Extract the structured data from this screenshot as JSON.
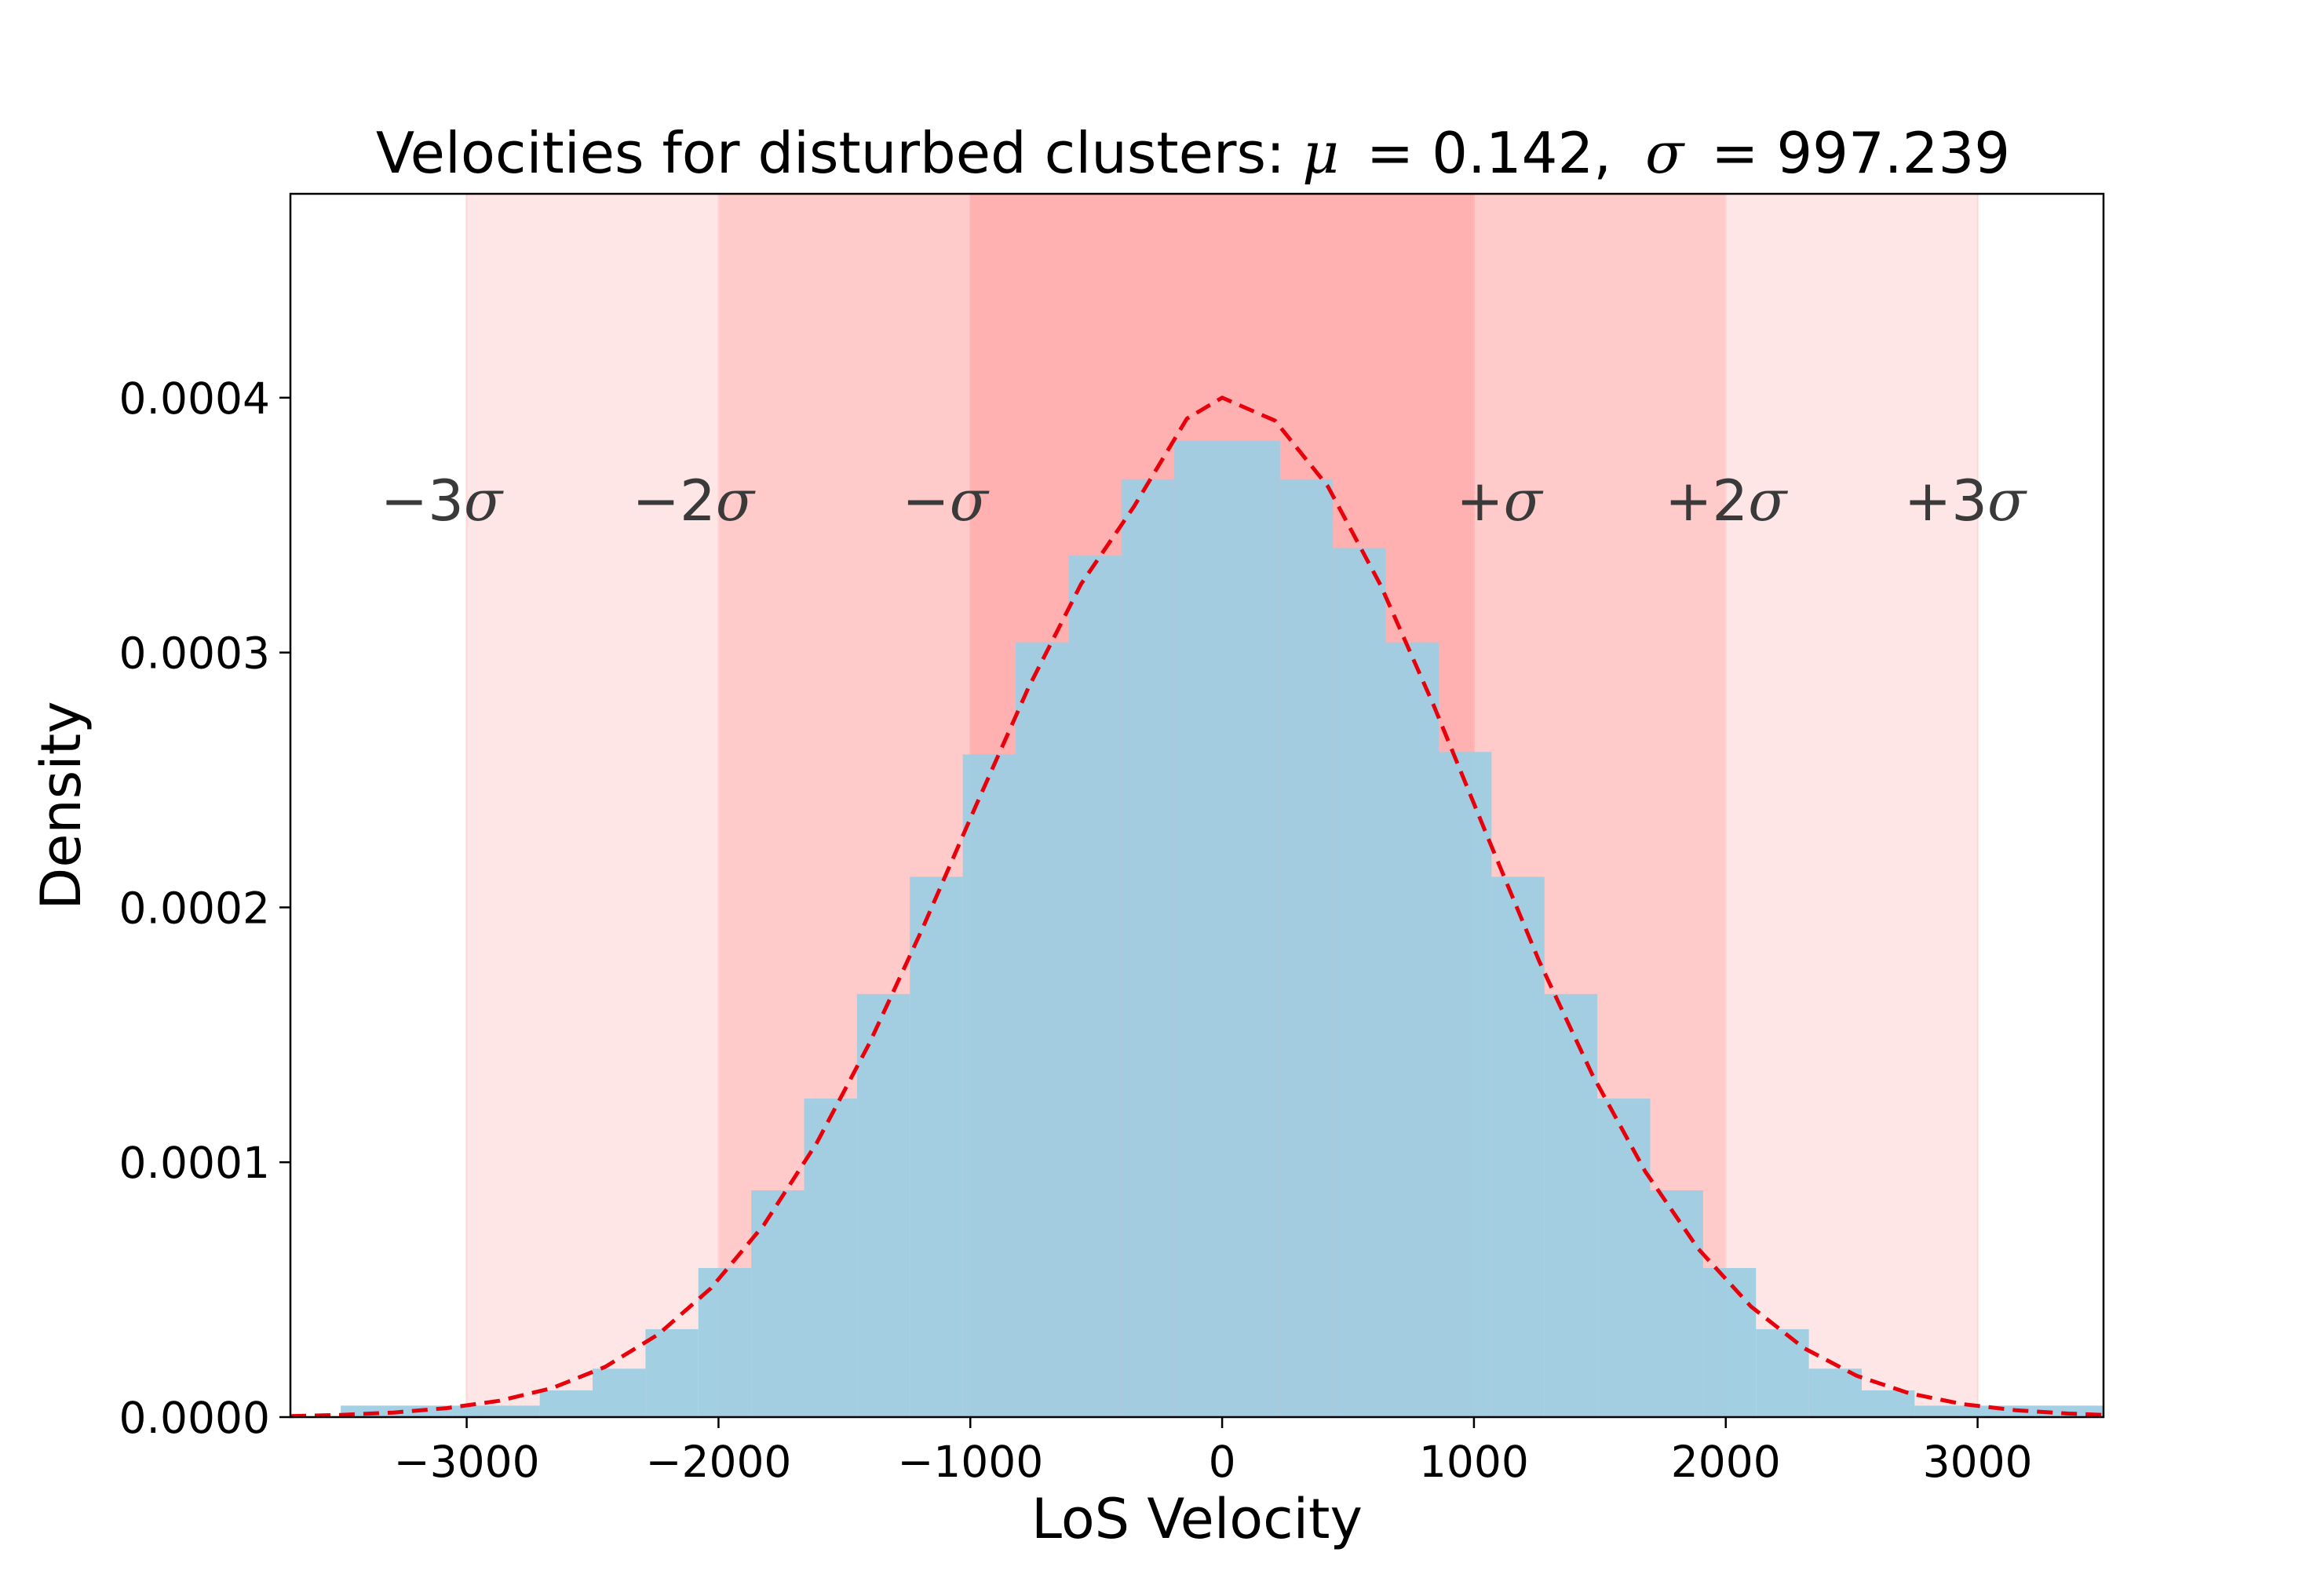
{
  "chart_data": {
    "type": "bar",
    "title": {
      "prefix": "Velocities for disturbed clusters",
      "colon": ":",
      "mu_symbol": "μ",
      "mu_value": "0.142",
      "sigma_symbol": "σ",
      "sigma_value": "997.239"
    },
    "xlabel": "LoS Velocity",
    "ylabel": "Density",
    "xlim": [
      -3700,
      3500
    ],
    "ylim": [
      0,
      0.00048
    ],
    "x_ticks": [
      -3000,
      -2000,
      -1000,
      0,
      1000,
      2000,
      3000
    ],
    "x_tick_labels": [
      "−3000",
      "−2000",
      "−1000",
      "0",
      "1000",
      "2000",
      "3000"
    ],
    "y_ticks": [
      0,
      0.0001,
      0.0002,
      0.0003,
      0.0004
    ],
    "y_tick_labels": [
      "0.0000",
      "0.0001",
      "0.0002",
      "0.0003",
      "0.0004"
    ],
    "sigma_bands": [
      {
        "from": -1000,
        "to": 1000,
        "color": "#ff9a9a",
        "opacity": 0.78
      },
      {
        "from": -2000,
        "to": -1000,
        "color": "#ffb8b8",
        "opacity": 0.75
      },
      {
        "from": 1000,
        "to": 2000,
        "color": "#ffb8b8",
        "opacity": 0.75
      },
      {
        "from": -3000,
        "to": -2000,
        "color": "#ffd6d6",
        "opacity": 0.6
      },
      {
        "from": 2000,
        "to": 3000,
        "color": "#ffd6d6",
        "opacity": 0.6
      }
    ],
    "band_labels": [
      {
        "x": -3100,
        "sign": "−",
        "mult": "3",
        "sym": "σ"
      },
      {
        "x": -2100,
        "sign": "−",
        "mult": "2",
        "sym": "σ"
      },
      {
        "x": -1100,
        "sign": "−",
        "mult": "",
        "sym": "σ"
      },
      {
        "x": 1100,
        "sign": "+",
        "mult": "",
        "sym": "σ"
      },
      {
        "x": 2000,
        "sign": "+",
        "mult": "2",
        "sym": "σ"
      },
      {
        "x": 2950,
        "sign": "+",
        "mult": "3",
        "sym": "σ"
      }
    ],
    "band_label_y": 0.00036,
    "histogram": {
      "color": "#9ecde3",
      "bin_edges": [
        -3500,
        -2710,
        -2500,
        -2290,
        -2080,
        -1870,
        -1660,
        -1450,
        -1240,
        -1030,
        -820,
        -610,
        -400,
        -190,
        20,
        230,
        440,
        650,
        860,
        1070,
        1280,
        1490,
        1700,
        1910,
        2120,
        2330,
        2540,
        2750,
        3500
      ],
      "values": [
        4.5e-06,
        1.05e-05,
        1.9e-05,
        3.45e-05,
        5.85e-05,
        8.9e-05,
        0.000125,
        0.000166,
        0.000212,
        0.00026,
        0.000304,
        0.000338,
        0.000368,
        0.000383,
        0.000383,
        0.000368,
        0.000341,
        0.000304,
        0.000261,
        0.000212,
        0.000166,
        0.000125,
        8.9e-05,
        5.85e-05,
        3.45e-05,
        1.9e-05,
        1.05e-05,
        4.5e-06
      ]
    },
    "fit_curve": {
      "style": "dashed",
      "color": "#e8000b",
      "mu": 0.142,
      "sigma": 997.239,
      "x": [
        -3700,
        -3500,
        -3290,
        -3080,
        -2870,
        -2660,
        -2450,
        -2240,
        -2030,
        -1820,
        -1610,
        -1400,
        -1190,
        -980,
        -770,
        -560,
        -350,
        -140,
        0,
        210,
        420,
        630,
        840,
        1050,
        1260,
        1470,
        1680,
        1890,
        2100,
        2310,
        2520,
        2730,
        2940,
        3150,
        3360,
        3500
      ],
      "y": [
        4.1e-07,
        8.7e-07,
        1.8e-06,
        3.5e-06,
        6.4e-06,
        1.14e-05,
        1.97e-05,
        3.24e-05,
        5.06e-05,
        7.54e-05,
        0.0001075,
        0.0001468,
        0.0001917,
        0.0002394,
        0.000286,
        0.0003269,
        0.0003573,
        0.0003918,
        0.0004,
        0.000391,
        0.0003652,
        0.0003263,
        0.0002793,
        0.0002286,
        0.0001787,
        0.0001344,
        9.64e-05,
        6.61e-05,
        4.34e-05,
        2.71e-05,
        1.62e-05,
        9.3e-06,
        5.1e-06,
        2.7e-06,
        1.4e-06,
        8.7e-07
      ]
    },
    "grid": false,
    "legend": "none"
  }
}
